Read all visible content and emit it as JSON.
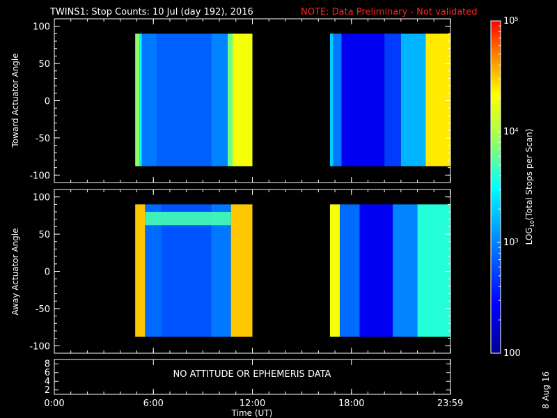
{
  "title": "TWINS1: Stop Counts: 10 Jul (day 192), 2016",
  "note": "NOTE: Data Preliminary - Not validated",
  "side_date": "8 Aug 16",
  "no_data_text": "NO ATTITUDE OR EPHEMERIS DATA",
  "colors": {
    "background": "#000000",
    "axes": "#ffffff",
    "note": "#ff2020"
  },
  "chart_data": [
    {
      "type": "heatmap",
      "panel": "toward",
      "ylabel": "Toward Actuator Angle",
      "xlim_hours": [
        0,
        24
      ],
      "ylim": [
        -110,
        110
      ],
      "y_ticks": [
        100,
        50,
        0,
        -50,
        -100
      ],
      "data_ranges_hours": [
        [
          4.9,
          12.0
        ],
        [
          16.7,
          24.0
        ]
      ],
      "data_angle_range": [
        -88,
        90
      ],
      "z_scale": "log",
      "segments": [
        {
          "start": 4.9,
          "end": 5.15,
          "log10_counts": 3.9
        },
        {
          "start": 5.15,
          "end": 5.3,
          "log10_counts": 3.5
        },
        {
          "start": 5.3,
          "end": 6.2,
          "log10_counts": 2.95
        },
        {
          "start": 6.2,
          "end": 9.5,
          "log10_counts": 2.85
        },
        {
          "start": 9.5,
          "end": 10.5,
          "log10_counts": 3.0
        },
        {
          "start": 10.5,
          "end": 10.8,
          "log10_counts": 3.8
        },
        {
          "start": 10.8,
          "end": 12.0,
          "log10_counts": 4.3
        },
        {
          "start": 16.7,
          "end": 16.9,
          "log10_counts": 3.3
        },
        {
          "start": 16.9,
          "end": 17.4,
          "log10_counts": 2.95
        },
        {
          "start": 17.4,
          "end": 20.0,
          "log10_counts": 2.4
        },
        {
          "start": 20.0,
          "end": 21.0,
          "log10_counts": 2.7
        },
        {
          "start": 21.0,
          "end": 22.5,
          "log10_counts": 3.2
        },
        {
          "start": 22.5,
          "end": 24.0,
          "log10_counts": 4.4
        }
      ]
    },
    {
      "type": "heatmap",
      "panel": "away",
      "ylabel": "Away Actuator Angle",
      "xlim_hours": [
        0,
        24
      ],
      "ylim": [
        -110,
        110
      ],
      "y_ticks": [
        100,
        50,
        0,
        -50,
        -100
      ],
      "data_ranges_hours": [
        [
          4.9,
          12.0
        ],
        [
          16.7,
          24.0
        ]
      ],
      "data_angle_range": [
        -88,
        90
      ],
      "z_scale": "log",
      "segments": [
        {
          "start": 4.9,
          "end": 5.5,
          "log10_counts": 4.5
        },
        {
          "start": 5.5,
          "end": 6.5,
          "log10_counts": 2.9
        },
        {
          "start": 6.5,
          "end": 9.5,
          "log10_counts": 2.8
        },
        {
          "start": 9.5,
          "end": 10.7,
          "log10_counts": 2.95
        },
        {
          "start": 10.7,
          "end": 12.0,
          "log10_counts": 4.5
        },
        {
          "start": 16.7,
          "end": 17.3,
          "log10_counts": 4.3
        },
        {
          "start": 17.3,
          "end": 18.5,
          "log10_counts": 2.9
        },
        {
          "start": 18.5,
          "end": 20.5,
          "log10_counts": 2.4
        },
        {
          "start": 20.5,
          "end": 22.0,
          "log10_counts": 3.0
        },
        {
          "start": 22.0,
          "end": 24.0,
          "log10_counts": 3.6
        }
      ],
      "band": {
        "angle_min": 62,
        "angle_max": 80,
        "start": 5.5,
        "end": 10.7,
        "log10_counts": 3.7
      }
    },
    {
      "type": "line",
      "panel": "ephemeris",
      "y_ticks": [
        8,
        6,
        4,
        2
      ],
      "ylim": [
        1,
        9
      ],
      "xlabel": "Time (UT)",
      "x_tick_hours": [
        0,
        6,
        12,
        18,
        23.983
      ],
      "x_tick_labels": [
        "0:00",
        "6:00",
        "12:00",
        "18:00",
        "23:59"
      ]
    }
  ],
  "colorbar": {
    "label": "LOG10(Total Stops per Scan)",
    "label_main": "LOG",
    "label_sub": "10",
    "label_rest": "(Total Stops per Scan)",
    "range_log10": [
      2,
      5
    ],
    "ticks": [
      {
        "log10": 5,
        "base": "10",
        "exp": "5"
      },
      {
        "log10": 4,
        "base": "10",
        "exp": "4"
      },
      {
        "log10": 3,
        "base": "10",
        "exp": "3"
      },
      {
        "log10": 2,
        "base": "100",
        "exp": ""
      }
    ]
  }
}
